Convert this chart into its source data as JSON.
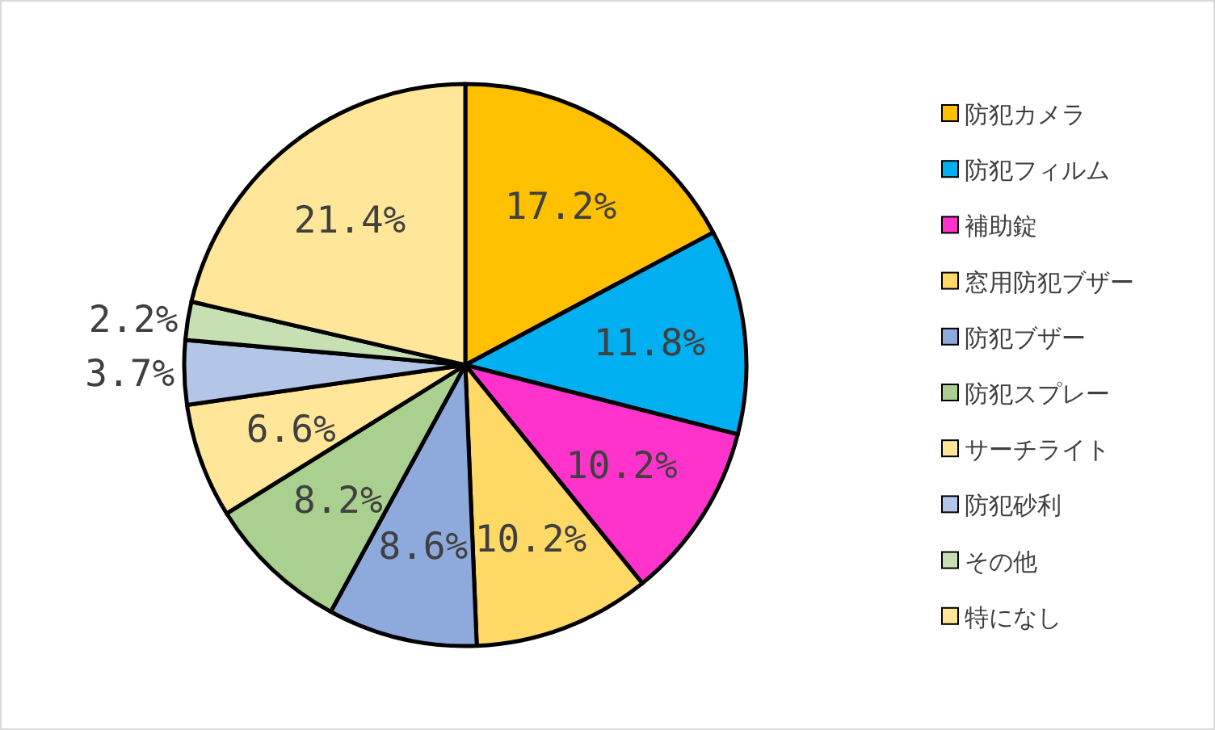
{
  "chart_data": {
    "type": "pie",
    "categories": [
      "防犯カメラ",
      "防犯フィルム",
      "補助錠",
      "窓用防犯ブザー",
      "防犯ブザー",
      "防犯スプレー",
      "サーチライト",
      "防犯砂利",
      "その他",
      "特になし"
    ],
    "values": [
      17.2,
      11.8,
      10.2,
      10.2,
      8.6,
      8.2,
      6.6,
      3.7,
      2.2,
      21.4
    ],
    "value_labels": [
      "17.2%",
      "11.8%",
      "10.2%",
      "10.2%",
      "8.6%",
      "8.2%",
      "6.6%",
      "3.7%",
      "2.2%",
      "21.4%"
    ],
    "colors": [
      "#ffc000",
      "#00b0f0",
      "#ff33cc",
      "#ffd966",
      "#8ea9db",
      "#a9d08e",
      "#ffe699",
      "#b4c6e7",
      "#c6e0b4",
      "#ffe699"
    ],
    "legend": "right"
  }
}
